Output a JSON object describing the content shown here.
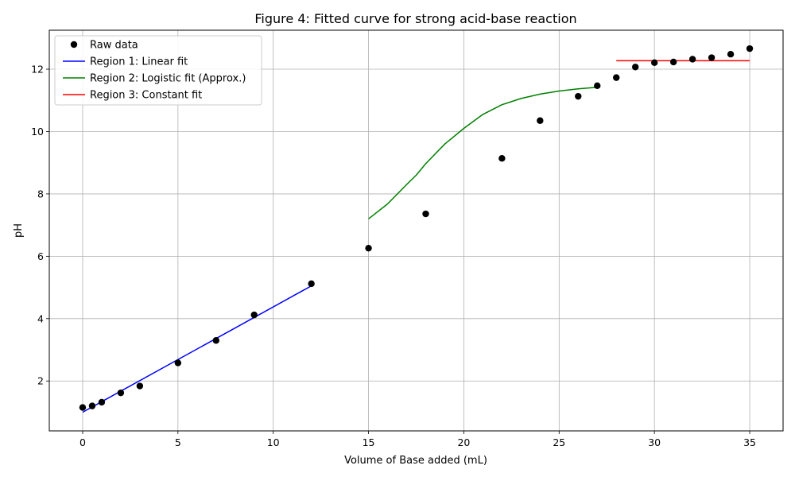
{
  "chart_data": {
    "type": "scatter",
    "title": "Figure 4: Fitted curve for strong acid-base reaction",
    "xlabel": "Volume of Base added (mL)",
    "ylabel": "pH",
    "xlim": [
      -1.75,
      36.75
    ],
    "ylim": [
      0.4,
      13.25
    ],
    "xticks": [
      0,
      5,
      10,
      15,
      20,
      25,
      30,
      35
    ],
    "yticks": [
      2,
      4,
      6,
      8,
      10,
      12
    ],
    "grid": true,
    "legend_position": "top-left",
    "series": [
      {
        "name": "Raw data",
        "kind": "points",
        "color": "#000000",
        "x": [
          0,
          0.5,
          1,
          2,
          3,
          5,
          7,
          9,
          12,
          15,
          18,
          22,
          24,
          26,
          27,
          28,
          29,
          30,
          31,
          32,
          33,
          34,
          35
        ],
        "y": [
          1.15,
          1.2,
          1.32,
          1.62,
          1.84,
          2.58,
          3.3,
          4.12,
          5.12,
          6.26,
          7.36,
          9.14,
          10.35,
          11.13,
          11.47,
          11.73,
          12.07,
          12.21,
          12.23,
          12.32,
          12.37,
          12.48,
          12.66
        ]
      },
      {
        "name": "Region 1: Linear fit",
        "kind": "line",
        "color": "#0000ff",
        "x": [
          0,
          12
        ],
        "y": [
          1.0,
          5.05
        ]
      },
      {
        "name": "Region 2: Logistic fit (Approx.)",
        "kind": "line",
        "color": "#008000",
        "x": [
          15,
          16,
          17,
          17.5,
          18,
          19,
          20,
          21,
          22,
          23,
          24,
          25,
          26,
          27
        ],
        "y": [
          7.2,
          7.68,
          8.3,
          8.6,
          8.97,
          9.6,
          10.1,
          10.55,
          10.86,
          11.06,
          11.2,
          11.3,
          11.37,
          11.42
        ]
      },
      {
        "name": "Region 3: Constant fit",
        "kind": "line",
        "color": "#ff0000",
        "x": [
          28,
          35
        ],
        "y": [
          12.27,
          12.27
        ]
      }
    ]
  }
}
